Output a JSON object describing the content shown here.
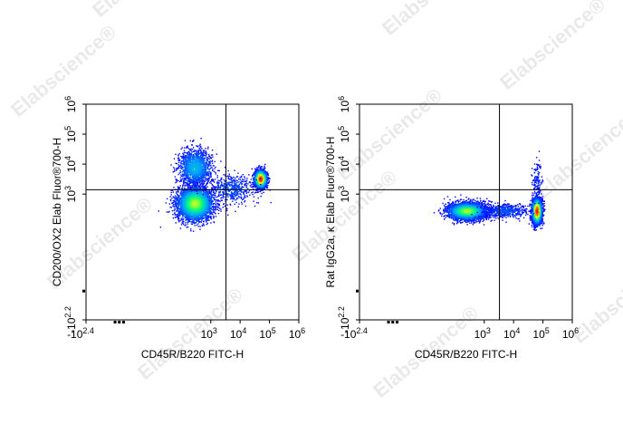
{
  "chart_data": [
    {
      "type": "scatter",
      "subtype": "flow-cytometry-density-dot-plot",
      "xlabel": "CD45R/B220  FITC-H",
      "ylabel": "CD200/OX2 Elab Fluor®700-H",
      "scale": "biexponential (log with negative region)",
      "x_ticks": [
        {
          "base": "-10",
          "exp": "2.4",
          "value": -251
        },
        {
          "base": "10",
          "exp": "3",
          "value": 1000
        },
        {
          "base": "10",
          "exp": "4",
          "value": 10000
        },
        {
          "base": "10",
          "exp": "5",
          "value": 100000
        },
        {
          "base": "10",
          "exp": "6",
          "value": 1000000
        }
      ],
      "y_ticks": [
        {
          "base": "-10",
          "exp": "2.2",
          "value": -158
        },
        {
          "base": "10",
          "exp": "3",
          "value": 1000
        },
        {
          "base": "10",
          "exp": "4",
          "value": 10000
        },
        {
          "base": "10",
          "exp": "5",
          "value": 100000
        },
        {
          "base": "10",
          "exp": "6",
          "value": 1000000
        }
      ],
      "gate": {
        "x": 3300,
        "y": 1400
      },
      "populations": [
        {
          "center_x": 280,
          "center_y": 500,
          "spread_x": 0.3,
          "spread_y": 0.28,
          "count": 3600,
          "peak_density": 0.55
        },
        {
          "center_x": 48000,
          "center_y": 3300,
          "spread_x": 0.1,
          "spread_y": 0.14,
          "count": 2300,
          "peak_density": 1.0
        },
        {
          "center_x": 280,
          "center_y": 8000,
          "spread_x": 0.28,
          "spread_y": 0.3,
          "count": 1400,
          "peak_density": 0.25
        },
        {
          "center_x": 5000,
          "center_y": 1500,
          "spread_x": 0.4,
          "spread_y": 0.25,
          "count": 500,
          "peak_density": 0.1
        }
      ],
      "colormap": [
        "#0000ff",
        "#00a0ff",
        "#00ff80",
        "#ffff00",
        "#ff8000",
        "#ff0000"
      ]
    },
    {
      "type": "scatter",
      "subtype": "flow-cytometry-density-dot-plot",
      "xlabel": "CD45R/B220  FITC-H",
      "ylabel": "Rat IgG2a, κ Elab Fluor®700-H",
      "scale": "biexponential (log with negative region)",
      "x_ticks": [
        {
          "base": "-10",
          "exp": "2.4",
          "value": -251
        },
        {
          "base": "10",
          "exp": "3",
          "value": 1000
        },
        {
          "base": "10",
          "exp": "4",
          "value": 10000
        },
        {
          "base": "10",
          "exp": "5",
          "value": 100000
        },
        {
          "base": "10",
          "exp": "6",
          "value": 1000000
        }
      ],
      "y_ticks": [
        {
          "base": "-10",
          "exp": "2.2",
          "value": -158
        },
        {
          "base": "10",
          "exp": "3",
          "value": 1000
        },
        {
          "base": "10",
          "exp": "4",
          "value": 10000
        },
        {
          "base": "10",
          "exp": "5",
          "value": 100000
        },
        {
          "base": "10",
          "exp": "6",
          "value": 1000000
        }
      ],
      "gate": {
        "x": 3300,
        "y": 1400
      },
      "populations": [
        {
          "center_x": 250,
          "center_y": 280,
          "spread_x": 0.32,
          "spread_y": 0.14,
          "count": 3800,
          "peak_density": 0.55
        },
        {
          "center_x": 60000,
          "center_y": 280,
          "spread_x": 0.08,
          "spread_y": 0.2,
          "count": 3200,
          "peak_density": 1.0
        },
        {
          "center_x": 5000,
          "center_y": 280,
          "spread_x": 0.4,
          "spread_y": 0.12,
          "count": 500,
          "peak_density": 0.1
        },
        {
          "center_x": 60000,
          "center_y": 3000,
          "spread_x": 0.08,
          "spread_y": 0.3,
          "count": 120,
          "peak_density": 0.05
        }
      ],
      "colormap": [
        "#0000ff",
        "#00a0ff",
        "#00ff80",
        "#ffff00",
        "#ff8000",
        "#ff0000"
      ]
    }
  ],
  "watermark": {
    "text": "Elabscience®"
  }
}
